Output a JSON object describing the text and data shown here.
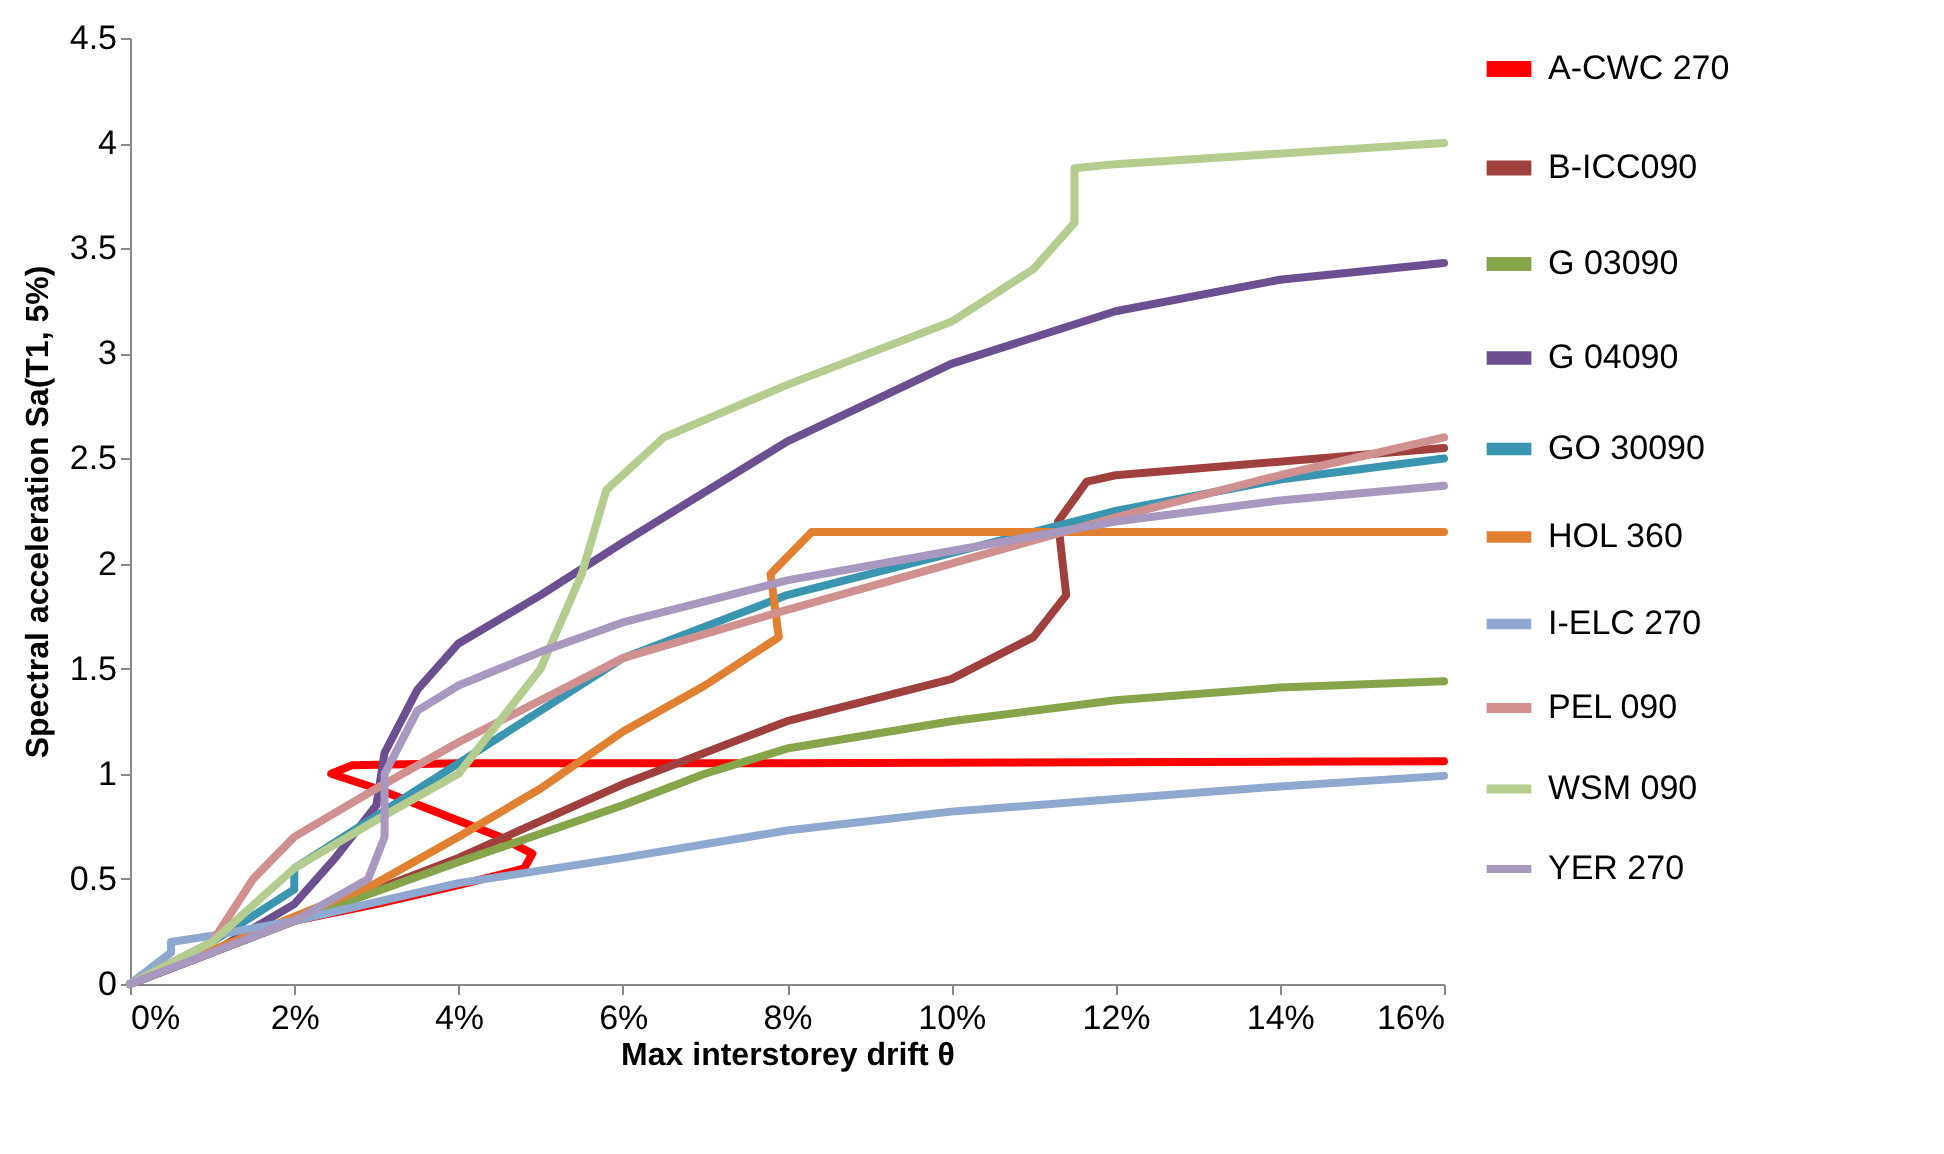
{
  "chart_data": {
    "type": "line",
    "xlabel": "Max interstorey drift θ",
    "ylabel": "Spectral acceleration Sa(T1, 5%)",
    "xlim": [
      0,
      16
    ],
    "ylim": [
      0,
      4.5
    ],
    "xticks": [
      {
        "value": 0,
        "label": "0%"
      },
      {
        "value": 2,
        "label": "2%"
      },
      {
        "value": 4,
        "label": "4%"
      },
      {
        "value": 6,
        "label": "6%"
      },
      {
        "value": 8,
        "label": "8%"
      },
      {
        "value": 10,
        "label": "10%"
      },
      {
        "value": 12,
        "label": "12%"
      },
      {
        "value": 14,
        "label": "14%"
      },
      {
        "value": 16,
        "label": "16%"
      }
    ],
    "yticks": [
      0,
      0.5,
      1,
      1.5,
      2,
      2.5,
      3,
      3.5,
      4,
      4.5
    ],
    "grid": false,
    "legend": "right",
    "line_style": "solid",
    "marker": "none",
    "series": [
      {
        "name": "A-CWC 270",
        "color": "#ff0000",
        "x": [
          0,
          1,
          2,
          3,
          4,
          4.8,
          4.9,
          4.5,
          3,
          2.45,
          2.7,
          4,
          8,
          16
        ],
        "values": [
          0,
          0.15,
          0.3,
          0.38,
          0.47,
          0.55,
          0.62,
          0.7,
          0.93,
          1.0,
          1.04,
          1.05,
          1.05,
          1.06
        ]
      },
      {
        "name": "B-ICC090",
        "color": "#a0403e",
        "x": [
          0,
          2,
          4,
          6,
          8,
          10,
          11,
          11.4,
          11.3,
          11.65,
          12,
          16
        ],
        "values": [
          0,
          0.3,
          0.6,
          0.95,
          1.25,
          1.45,
          1.65,
          1.85,
          2.2,
          2.39,
          2.42,
          2.55
        ]
      },
      {
        "name": "G 03090",
        "color": "#86a44a",
        "x": [
          0,
          2,
          4,
          6,
          7,
          8,
          10,
          12,
          14,
          16
        ],
        "values": [
          0,
          0.3,
          0.58,
          0.85,
          1.0,
          1.12,
          1.25,
          1.35,
          1.41,
          1.44
        ]
      },
      {
        "name": "G 04090",
        "color": "#6c4f91",
        "x": [
          0,
          1,
          2,
          2.5,
          3,
          3.1,
          3.5,
          4,
          5,
          6,
          8,
          10,
          12,
          14,
          16
        ],
        "values": [
          0,
          0.15,
          0.38,
          0.6,
          0.85,
          1.1,
          1.4,
          1.62,
          1.85,
          2.1,
          2.58,
          2.95,
          3.2,
          3.35,
          3.43
        ]
      },
      {
        "name": "GO 30090",
        "color": "#3a96b0",
        "x": [
          0,
          1,
          2,
          2,
          3,
          4,
          5,
          6,
          8,
          10,
          12,
          14,
          16
        ],
        "values": [
          0,
          0.2,
          0.45,
          0.55,
          0.8,
          1.05,
          1.3,
          1.55,
          1.85,
          2.05,
          2.25,
          2.4,
          2.5
        ]
      },
      {
        "name": "HOL 360",
        "color": "#e08030",
        "x": [
          0,
          2,
          3,
          4,
          5,
          6,
          7,
          7.9,
          7.8,
          8.3,
          10,
          16
        ],
        "values": [
          0,
          0.32,
          0.48,
          0.7,
          0.93,
          1.2,
          1.42,
          1.65,
          1.95,
          2.15,
          2.15,
          2.15
        ]
      },
      {
        "name": "I-ELC 270",
        "color": "#8ea8d0",
        "x": [
          0,
          0.5,
          0.5,
          1,
          2,
          4,
          6,
          8,
          10,
          12,
          14,
          16
        ],
        "values": [
          0,
          0.15,
          0.2,
          0.23,
          0.3,
          0.48,
          0.6,
          0.73,
          0.82,
          0.88,
          0.94,
          0.99
        ]
      },
      {
        "name": "PEL 090",
        "color": "#d09090",
        "x": [
          0,
          1,
          1.5,
          2,
          3,
          4,
          5,
          6,
          8,
          10,
          12,
          14,
          16
        ],
        "values": [
          0,
          0.2,
          0.5,
          0.7,
          0.93,
          1.15,
          1.35,
          1.55,
          1.78,
          2.0,
          2.22,
          2.42,
          2.6
        ]
      },
      {
        "name": "WSM 090",
        "color": "#b4cc8e",
        "x": [
          0,
          1,
          2,
          3,
          4,
          5,
          5.5,
          5.8,
          6.5,
          8,
          10,
          11,
          11.5,
          11.5,
          12,
          16
        ],
        "values": [
          0,
          0.2,
          0.55,
          0.78,
          1.0,
          1.5,
          1.95,
          2.35,
          2.6,
          2.85,
          3.15,
          3.4,
          3.62,
          3.88,
          3.9,
          4.0
        ]
      },
      {
        "name": "YER 270",
        "color": "#a898c0",
        "x": [
          0,
          1,
          2,
          2.9,
          3.1,
          3.1,
          3.5,
          4,
          5,
          6,
          8,
          10,
          12,
          14,
          16
        ],
        "values": [
          0,
          0.15,
          0.3,
          0.5,
          0.7,
          1.0,
          1.3,
          1.42,
          1.58,
          1.72,
          1.92,
          2.06,
          2.2,
          2.3,
          2.37
        ]
      }
    ]
  }
}
